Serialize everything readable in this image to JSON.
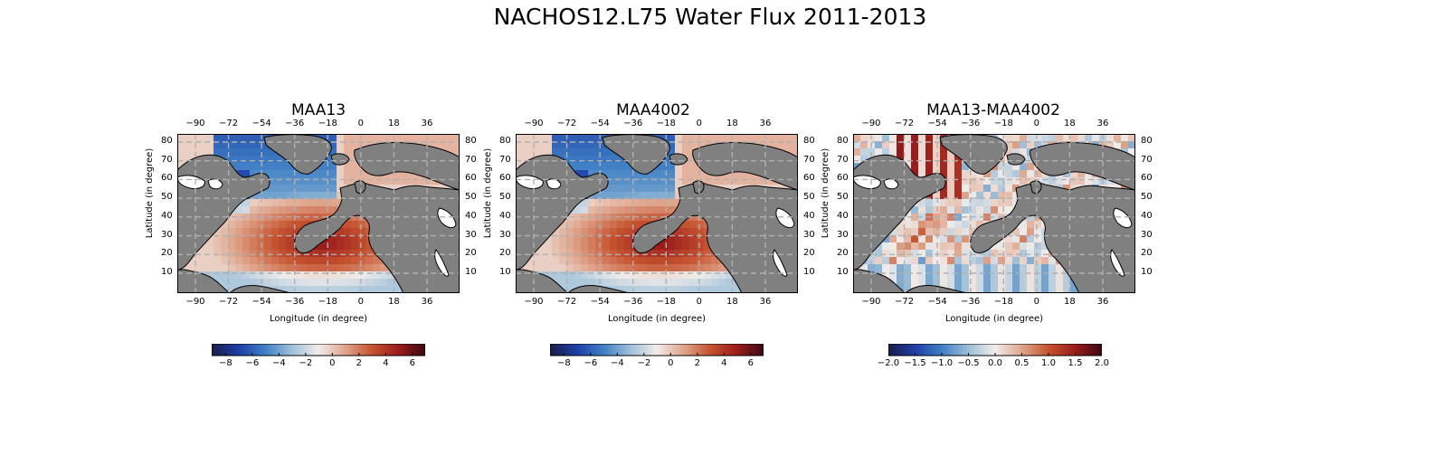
{
  "figure": {
    "title": "NACHOS12.L75 Water Flux 2011-2013"
  },
  "panels": [
    {
      "title": "MAA13",
      "xlabel": "Longitude (in degree)",
      "ylabel": "Latitude (in degree)",
      "lon_ticks": [
        "−90",
        "−72",
        "−54",
        "−36",
        "−18",
        "0",
        "18",
        "36"
      ],
      "lat_ticks": [
        "80",
        "70",
        "60",
        "50",
        "40",
        "30",
        "20",
        "10"
      ],
      "colorbar_ticks": [
        "−8",
        "−6",
        "−4",
        "−2",
        "0",
        "2",
        "4",
        "6"
      ],
      "colormap": "balance"
    },
    {
      "title": "MAA4002",
      "xlabel": "Longitude (in degree)",
      "ylabel": "Latitude (in degree)",
      "lon_ticks": [
        "−90",
        "−72",
        "−54",
        "−36",
        "−18",
        "0",
        "18",
        "36"
      ],
      "lat_ticks": [
        "80",
        "70",
        "60",
        "50",
        "40",
        "30",
        "20",
        "10"
      ],
      "colorbar_ticks": [
        "−8",
        "−6",
        "−4",
        "−2",
        "0",
        "2",
        "4",
        "6"
      ],
      "colormap": "balance"
    },
    {
      "title": "MAA13-MAA4002",
      "xlabel": "Longitude (in degree)",
      "ylabel": "Latitude (in degree)",
      "lon_ticks": [
        "−90",
        "−72",
        "−54",
        "−36",
        "−18",
        "0",
        "18",
        "36"
      ],
      "lat_ticks": [
        "80",
        "70",
        "60",
        "50",
        "40",
        "30",
        "20",
        "10"
      ],
      "colorbar_ticks": [
        "−2.0",
        "−1.5",
        "−1.0",
        "−0.5",
        "0.0",
        "0.5",
        "1.0",
        "1.5",
        "2.0"
      ],
      "colormap": "balance"
    }
  ],
  "colors": {
    "land": "#808080",
    "grid": "#b0b0b0",
    "cmap_stops": [
      "#1b1d48",
      "#1e3fa6",
      "#3f7fc4",
      "#9dbfd8",
      "#f1ecea",
      "#dfa58c",
      "#c5532f",
      "#9b1c1c",
      "#3c0912"
    ]
  }
}
